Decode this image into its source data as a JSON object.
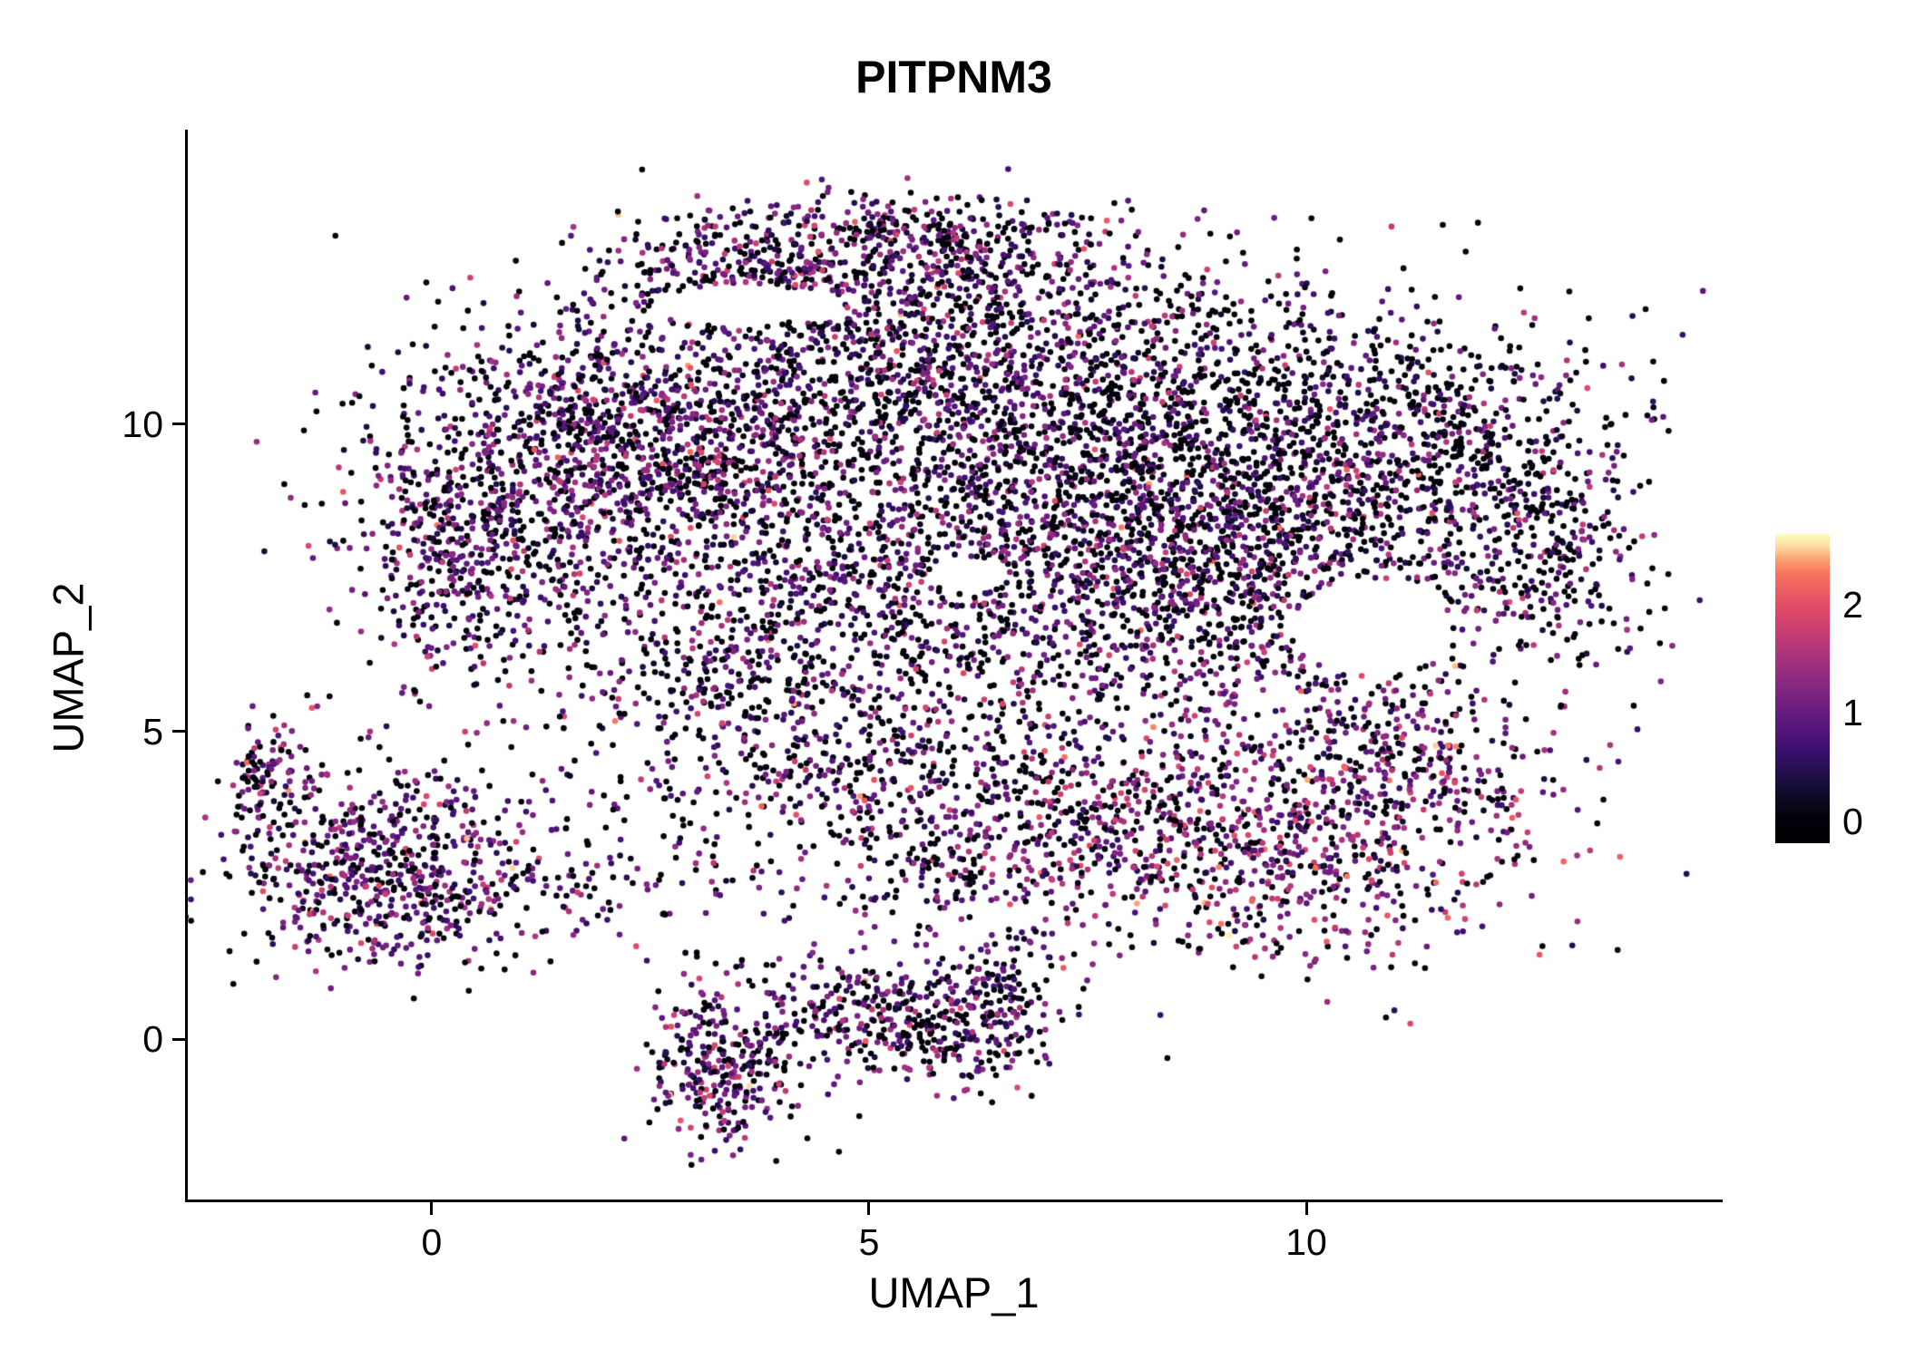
{
  "chart_data": {
    "type": "scatter",
    "title": "PITPNM3",
    "xlabel": "UMAP_1",
    "ylabel": "UMAP_2",
    "xlim": [
      -2.79,
      14.73
    ],
    "ylim": [
      -2.61,
      14.79
    ],
    "x_ticks": [
      0,
      5,
      10
    ],
    "x_tick_labels": [
      "0",
      "5",
      "10"
    ],
    "y_ticks": [
      0,
      5,
      10
    ],
    "y_tick_labels": [
      "0",
      "5",
      "10"
    ],
    "grid": false,
    "background": "#ffffff",
    "axis_color": "#000000",
    "point_radius_px": 3.3,
    "seed": 1337,
    "colorbar": {
      "position": "right",
      "tick_values": [
        0,
        1,
        2
      ],
      "tick_labels": [
        "0",
        "1",
        "2"
      ],
      "bar_range": [
        -0.2,
        2.65
      ],
      "value_domain": [
        0,
        2.6
      ],
      "colormap_name": "magma",
      "colormap_stops": [
        {
          "t": 0.0,
          "color": "#000004"
        },
        {
          "t": 0.125,
          "color": "#140e36"
        },
        {
          "t": 0.25,
          "color": "#3b0f70"
        },
        {
          "t": 0.375,
          "color": "#641a80"
        },
        {
          "t": 0.5,
          "color": "#8c2981"
        },
        {
          "t": 0.625,
          "color": "#b73779"
        },
        {
          "t": 0.75,
          "color": "#de4968"
        },
        {
          "t": 0.875,
          "color": "#f7705c"
        },
        {
          "t": 0.9375,
          "color": "#fda874"
        },
        {
          "t": 1.0,
          "color": "#fcfdbf"
        }
      ]
    },
    "clusters": [
      {
        "name": "top-arc-left",
        "cx": 3.7,
        "cy": 12.55,
        "sx": 0.95,
        "sy": 0.5,
        "n": 380,
        "p0": 0.32,
        "mu": 0.9,
        "sd": 0.5
      },
      {
        "name": "top-arc-right",
        "cx": 5.9,
        "cy": 13.0,
        "sx": 1.0,
        "sy": 0.38,
        "n": 320,
        "p0": 0.35,
        "mu": 0.9,
        "sd": 0.5
      },
      {
        "name": "top-neck",
        "cx": 5.8,
        "cy": 11.9,
        "sx": 1.2,
        "sy": 0.55,
        "n": 240,
        "p0": 0.4,
        "mu": 0.85,
        "sd": 0.5
      },
      {
        "name": "upper-left-dense",
        "cx": 2.3,
        "cy": 9.6,
        "sx": 1.35,
        "sy": 1.15,
        "n": 1450,
        "p0": 0.36,
        "mu": 0.9,
        "sd": 0.5
      },
      {
        "name": "left-lobe",
        "cx": 0.4,
        "cy": 7.9,
        "sx": 0.7,
        "sy": 1.05,
        "n": 430,
        "p0": 0.36,
        "mu": 0.9,
        "sd": 0.5
      },
      {
        "name": "mid-upper",
        "cx": 5.3,
        "cy": 10.6,
        "sx": 1.35,
        "sy": 1.0,
        "n": 620,
        "p0": 0.44,
        "mu": 0.85,
        "sd": 0.5
      },
      {
        "name": "right-upper",
        "cx": 8.4,
        "cy": 10.5,
        "sx": 1.7,
        "sy": 1.05,
        "n": 880,
        "p0": 0.46,
        "mu": 0.82,
        "sd": 0.5
      },
      {
        "name": "far-right-upper",
        "cx": 11.3,
        "cy": 9.6,
        "sx": 1.25,
        "sy": 1.0,
        "n": 560,
        "p0": 0.5,
        "mu": 0.8,
        "sd": 0.5
      },
      {
        "name": "right-tip",
        "cx": 12.75,
        "cy": 7.9,
        "sx": 0.55,
        "sy": 1.05,
        "n": 260,
        "p0": 0.5,
        "mu": 0.8,
        "sd": 0.5
      },
      {
        "name": "right-band",
        "cx": 9.0,
        "cy": 8.8,
        "sx": 1.7,
        "sy": 0.85,
        "n": 620,
        "p0": 0.42,
        "mu": 0.9,
        "sd": 0.5
      },
      {
        "name": "center-mass",
        "cx": 6.3,
        "cy": 7.6,
        "sx": 2.0,
        "sy": 1.4,
        "n": 1250,
        "p0": 0.42,
        "mu": 0.9,
        "sd": 0.5
      },
      {
        "name": "right-center",
        "cx": 9.4,
        "cy": 7.1,
        "sx": 1.3,
        "sy": 1.1,
        "n": 650,
        "p0": 0.4,
        "mu": 0.95,
        "sd": 0.5
      },
      {
        "name": "center-left-low",
        "cx": 3.6,
        "cy": 5.9,
        "sx": 1.2,
        "sy": 0.95,
        "n": 430,
        "p0": 0.4,
        "mu": 0.9,
        "sd": 0.5
      },
      {
        "name": "mid-low-band",
        "cx": 5.8,
        "cy": 4.3,
        "sx": 1.6,
        "sy": 0.65,
        "n": 330,
        "p0": 0.4,
        "mu": 0.95,
        "sd": 0.5
      },
      {
        "name": "right-low-warm",
        "cx": 9.4,
        "cy": 3.2,
        "sx": 1.55,
        "sy": 1.0,
        "n": 850,
        "p0": 0.3,
        "mu": 1.25,
        "sd": 0.55
      },
      {
        "name": "right-low-ext",
        "cx": 11.3,
        "cy": 4.6,
        "sx": 0.85,
        "sy": 0.8,
        "n": 260,
        "p0": 0.35,
        "mu": 1.1,
        "sd": 0.5
      },
      {
        "name": "left-island",
        "cx": -0.5,
        "cy": 2.8,
        "sx": 0.95,
        "sy": 0.85,
        "n": 680,
        "p0": 0.3,
        "mu": 1.0,
        "sd": 0.5
      },
      {
        "name": "left-island-tip",
        "cx": -1.85,
        "cy": 4.3,
        "sx": 0.25,
        "sy": 0.45,
        "n": 90,
        "p0": 0.3,
        "mu": 1.0,
        "sd": 0.5
      },
      {
        "name": "bottom-island-a",
        "cx": 3.3,
        "cy": -0.5,
        "sx": 0.45,
        "sy": 0.65,
        "n": 280,
        "p0": 0.3,
        "mu": 1.0,
        "sd": 0.5
      },
      {
        "name": "bottom-island-b",
        "cx": 4.8,
        "cy": 0.4,
        "sx": 0.75,
        "sy": 0.5,
        "n": 280,
        "p0": 0.34,
        "mu": 0.95,
        "sd": 0.5
      },
      {
        "name": "bottom-island-c",
        "cx": 6.1,
        "cy": 0.05,
        "sx": 0.6,
        "sy": 0.5,
        "n": 200,
        "p0": 0.34,
        "mu": 0.95,
        "sd": 0.5
      },
      {
        "name": "left-connector",
        "cx": 1.9,
        "cy": 2.7,
        "sx": 0.9,
        "sy": 0.5,
        "n": 100,
        "p0": 0.4,
        "mu": 0.9,
        "sd": 0.5
      },
      {
        "name": "mid-connector",
        "cx": 5.6,
        "cy": 2.7,
        "sx": 1.0,
        "sy": 0.5,
        "n": 150,
        "p0": 0.4,
        "mu": 0.95,
        "sd": 0.5
      },
      {
        "name": "band-strand",
        "cx": 7.3,
        "cy": 3.4,
        "sx": 1.2,
        "sy": 0.5,
        "n": 170,
        "p0": 0.38,
        "mu": 1.0,
        "sd": 0.5
      },
      {
        "name": "bottom-strand",
        "cx": 6.6,
        "cy": 1.1,
        "sx": 0.5,
        "sy": 0.45,
        "n": 80,
        "p0": 0.4,
        "mu": 0.9,
        "sd": 0.5
      },
      {
        "name": "diffuse-fill",
        "cx": 7.0,
        "cy": 8.2,
        "sx": 3.2,
        "sy": 2.3,
        "n": 420,
        "p0": 0.5,
        "mu": 0.8,
        "sd": 0.5
      }
    ],
    "holes": [
      {
        "cx": 10.75,
        "cy": 6.7,
        "rx": 0.9,
        "ry": 0.8
      },
      {
        "cx": 3.6,
        "cy": 11.95,
        "rx": 1.1,
        "ry": 0.3
      },
      {
        "cx": 6.15,
        "cy": 7.55,
        "rx": 0.45,
        "ry": 0.3
      }
    ]
  }
}
